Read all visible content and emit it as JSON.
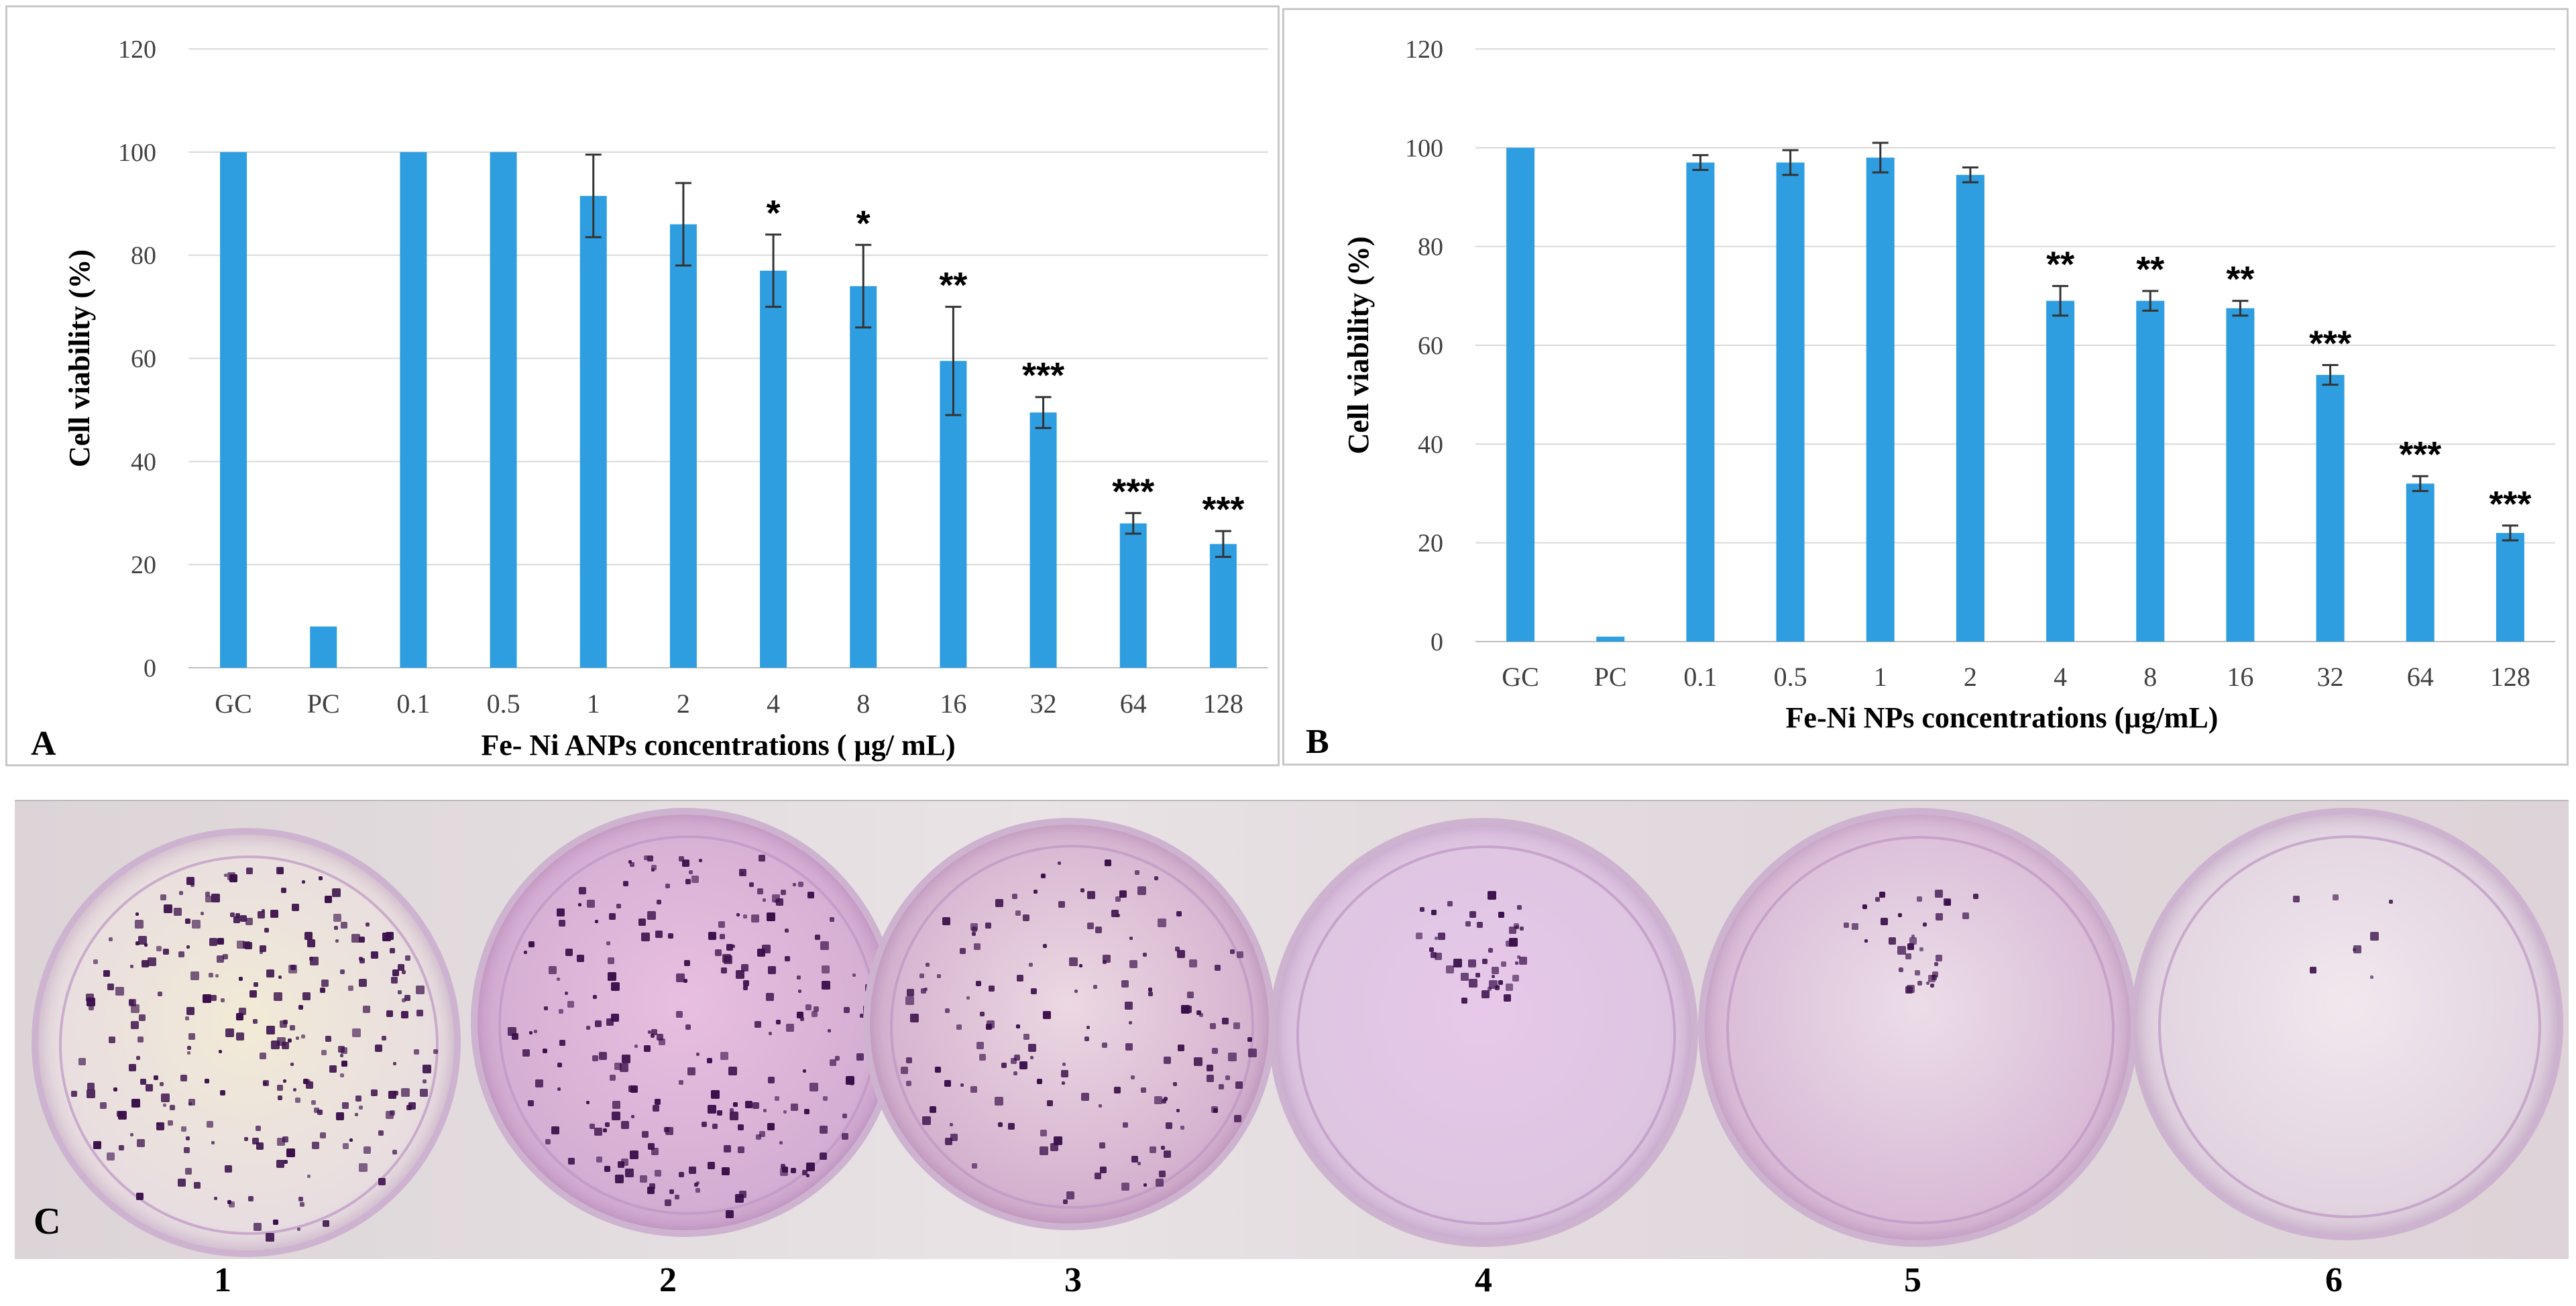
{
  "chart_data": [
    {
      "type": "bar",
      "panel_letter": "A",
      "xlabel": "Fe- Ni ANPs concentrations ( µg/ mL)",
      "ylabel": "Cell viability (%)",
      "ylim": [
        0,
        120
      ],
      "yticks": [
        "0",
        "20",
        "40",
        "60",
        "80",
        "100",
        "120"
      ],
      "categories": [
        "GC",
        "PC",
        "0.1",
        "0.5",
        "1",
        "2",
        "4",
        "8",
        "16",
        "32",
        "64",
        "128"
      ],
      "values": [
        100,
        8,
        100,
        100,
        91.5,
        86,
        77,
        74,
        59.5,
        49.5,
        28,
        24
      ],
      "errors": [
        0,
        0,
        0,
        0,
        8,
        8,
        7,
        8,
        10.5,
        3,
        2,
        2.5
      ],
      "significance": [
        "",
        "",
        "",
        "",
        "",
        "",
        "*",
        "*",
        "**",
        "***",
        "***",
        "***"
      ],
      "grid": true,
      "bar_color": "#2e9ee0"
    },
    {
      "type": "bar",
      "panel_letter": "B",
      "xlabel": "Fe-Ni NPs concentrations (µg/mL)",
      "ylabel": "Cell viability (%)",
      "ylim": [
        0,
        120
      ],
      "yticks": [
        "0",
        "20",
        "40",
        "60",
        "80",
        "100",
        "120"
      ],
      "categories": [
        "GC",
        "PC",
        "0.1",
        "0.5",
        "1",
        "2",
        "4",
        "8",
        "16",
        "32",
        "64",
        "128"
      ],
      "values": [
        100,
        1,
        97,
        97,
        98,
        94.5,
        69,
        69,
        67.5,
        54,
        32,
        22
      ],
      "errors": [
        0,
        0,
        1.5,
        2.5,
        3,
        1.5,
        3,
        2,
        1.5,
        2,
        1.5,
        1.5
      ],
      "significance": [
        "",
        "",
        "",
        "",
        "",
        "",
        "**",
        "**",
        "**",
        "***",
        "***",
        "***"
      ],
      "grid": true,
      "bar_color": "#2e9ee0"
    }
  ],
  "photo": {
    "panel_letter": "C",
    "dish_labels": [
      "1",
      "2",
      "3",
      "4",
      "5",
      "6"
    ],
    "stain_color": "#b27ab8",
    "colony_color": "#3a0f4a"
  }
}
